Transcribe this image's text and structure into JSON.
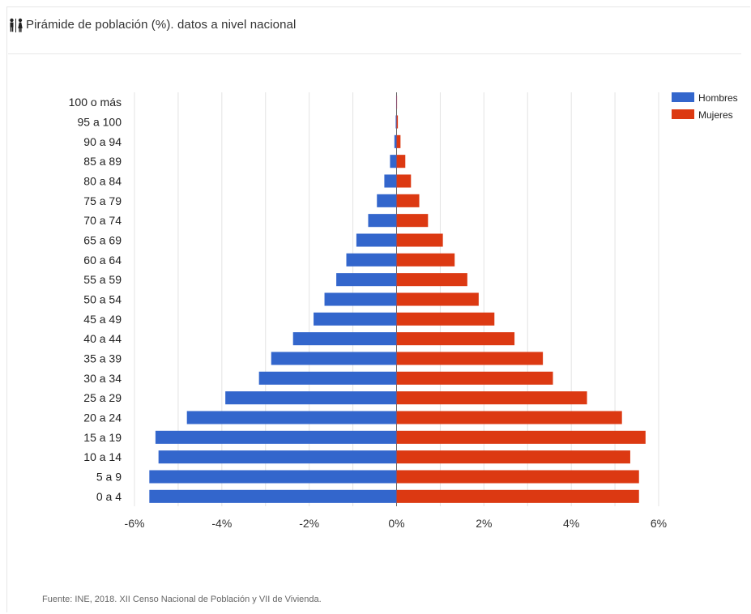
{
  "header": {
    "title": "Pirámide de población (%). datos a nivel nacional",
    "icon": "people-icon"
  },
  "footer": {
    "source": "Fuente: INE, 2018. XII Censo Nacional de Población y VII de Vivienda."
  },
  "chart_data": {
    "type": "bar",
    "orientation": "horizontal",
    "title": "Pirámide de población (%). datos a nivel nacional",
    "categories": [
      "100 o más",
      "95 a 100",
      "90 a 94",
      "85 a 89",
      "80 a 84",
      "75 a 79",
      "70 a 74",
      "65 a 69",
      "60 a 64",
      "55 a 59",
      "50 a 54",
      "45 a 49",
      "40 a 44",
      "35 a 39",
      "30 a 34",
      "25 a 29",
      "20 a 24",
      "15 a 19",
      "10 a 14",
      "5 a 9",
      "0 a 4"
    ],
    "series": [
      {
        "name": "Hombres",
        "color": "#3366cc",
        "values": [
          -0.01,
          -0.02,
          -0.05,
          -0.15,
          -0.28,
          -0.45,
          -0.65,
          -0.92,
          -1.15,
          -1.38,
          -1.65,
          -1.9,
          -2.37,
          -2.87,
          -3.15,
          -3.92,
          -4.8,
          -5.52,
          -5.45,
          -5.66,
          -5.66
        ]
      },
      {
        "name": "Mujeres",
        "color": "#dc3912",
        "values": [
          0.01,
          0.03,
          0.09,
          0.2,
          0.33,
          0.52,
          0.72,
          1.06,
          1.33,
          1.62,
          1.88,
          2.24,
          2.7,
          3.35,
          3.58,
          4.36,
          5.16,
          5.7,
          5.35,
          5.55,
          5.55
        ]
      }
    ],
    "xlim": [
      -6,
      6
    ],
    "xticks": [
      -6,
      -4,
      -2,
      0,
      2,
      4,
      6
    ],
    "xtick_labels": [
      "-6%",
      "-4%",
      "-2%",
      "0%",
      "2%",
      "4%",
      "6%"
    ],
    "grid": true,
    "legend": "top-right"
  }
}
